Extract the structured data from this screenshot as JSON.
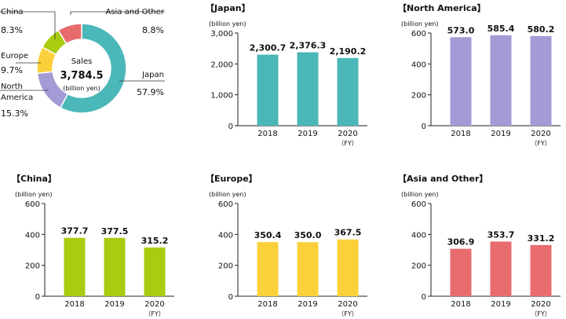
{
  "chart_data": [
    {
      "type": "pie",
      "title": "",
      "center_label": "Sales",
      "center_value": "3,784.5",
      "center_unit": "(billion yen)",
      "slices": [
        {
          "name": "Japan",
          "pct_label": "57.9%",
          "value": 57.9,
          "color": "#4cb7b8"
        },
        {
          "name": "North America",
          "pct_label": "15.3%",
          "value": 15.3,
          "color": "#a39bd6"
        },
        {
          "name": "Europe",
          "pct_label": "9.7%",
          "value": 9.7,
          "color": "#fcd03a"
        },
        {
          "name": "China",
          "pct_label": "8.3%",
          "value": 8.3,
          "color": "#a8cc10"
        },
        {
          "name": "Asia and Other",
          "pct_label": "8.8%",
          "value": 8.8,
          "color": "#e86c6e"
        }
      ]
    },
    {
      "type": "bar",
      "title": "【Japan】",
      "ylabel": "(billion yen)",
      "categories": [
        "2018",
        "2019",
        "2020"
      ],
      "fy_label": "（FY）",
      "values": [
        2300.7,
        2376.3,
        2190.2
      ],
      "value_labels": [
        "2,300.7",
        "2,376.3",
        "2,190.2"
      ],
      "yticks": [
        "0",
        "1,000",
        "2,000",
        "3,000"
      ],
      "ytick_values": [
        0,
        1000,
        2000,
        3000
      ],
      "ylim": [
        0,
        3000
      ],
      "color": "#4cb7b8",
      "grid": false
    },
    {
      "type": "bar",
      "title": "【North America】",
      "ylabel": "(billion yen)",
      "categories": [
        "2018",
        "2019",
        "2020"
      ],
      "fy_label": "（FY）",
      "values": [
        573.0,
        585.4,
        580.2
      ],
      "value_labels": [
        "573.0",
        "585.4",
        "580.2"
      ],
      "yticks": [
        "0",
        "200",
        "400",
        "600"
      ],
      "ytick_values": [
        0,
        200,
        400,
        600
      ],
      "ylim": [
        0,
        600
      ],
      "color": "#a39bd6",
      "grid": false
    },
    {
      "type": "bar",
      "title": "【China】",
      "ylabel": "(billion yen)",
      "categories": [
        "2018",
        "2019",
        "2020"
      ],
      "fy_label": "（FY）",
      "values": [
        377.7,
        377.5,
        315.2
      ],
      "value_labels": [
        "377.7",
        "377.5",
        "315.2"
      ],
      "yticks": [
        "0",
        "200",
        "400",
        "600"
      ],
      "ytick_values": [
        0,
        200,
        400,
        600
      ],
      "ylim": [
        0,
        600
      ],
      "color": "#a8cc10",
      "grid": false
    },
    {
      "type": "bar",
      "title": "【Europe】",
      "ylabel": "(billion yen)",
      "categories": [
        "2018",
        "2019",
        "2020"
      ],
      "fy_label": "（FY）",
      "values": [
        350.4,
        350.0,
        367.5
      ],
      "value_labels": [
        "350.4",
        "350.0",
        "367.5"
      ],
      "yticks": [
        "0",
        "200",
        "400",
        "600"
      ],
      "ytick_values": [
        0,
        200,
        400,
        600
      ],
      "ylim": [
        0,
        600
      ],
      "color": "#fcd03a",
      "grid": false
    },
    {
      "type": "bar",
      "title": "【Asia and Other】",
      "ylabel": "(billion yen)",
      "categories": [
        "2018",
        "2019",
        "2020"
      ],
      "fy_label": "（FY）",
      "values": [
        306.9,
        353.7,
        331.2
      ],
      "value_labels": [
        "306.9",
        "353.7",
        "331.2"
      ],
      "yticks": [
        "0",
        "200",
        "400",
        "600"
      ],
      "ytick_values": [
        0,
        200,
        400,
        600
      ],
      "ylim": [
        0,
        600
      ],
      "color": "#e86c6e",
      "grid": false
    }
  ]
}
